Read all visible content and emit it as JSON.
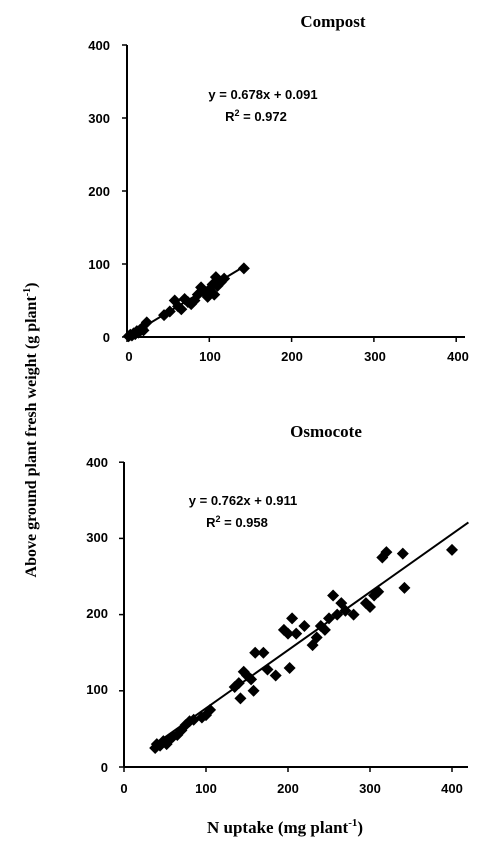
{
  "figure": {
    "ylabel": "Above ground plant fresh weight (g plant",
    "ylabel_sup": "-1",
    "ylabel_close": ")",
    "xlabel": "N uptake (mg plant",
    "xlabel_sup": "-1",
    "xlabel_close": ")"
  },
  "chart_data": [
    {
      "type": "scatter",
      "title": "Compost",
      "xlim": [
        0,
        400
      ],
      "ylim": [
        0,
        400
      ],
      "xticks": [
        "0",
        "100",
        "200",
        "300",
        "400"
      ],
      "yticks": [
        "0",
        "100",
        "200",
        "300",
        "400"
      ],
      "equation": "y = 0.678x + 0.091",
      "r2_prefix": "R",
      "r2_sup": "2",
      "r2_value": " = 0.972",
      "fit": {
        "slope": 0.678,
        "intercept": 0.091,
        "x_range": [
          0,
          142
        ]
      },
      "points": [
        [
          2,
          1
        ],
        [
          4,
          3
        ],
        [
          6,
          2
        ],
        [
          8,
          5
        ],
        [
          10,
          4
        ],
        [
          12,
          8
        ],
        [
          14,
          6
        ],
        [
          16,
          10
        ],
        [
          18,
          12
        ],
        [
          20,
          9
        ],
        [
          24,
          20
        ],
        [
          45,
          30
        ],
        [
          52,
          35
        ],
        [
          58,
          50
        ],
        [
          62,
          42
        ],
        [
          66,
          38
        ],
        [
          70,
          52
        ],
        [
          74,
          48
        ],
        [
          78,
          45
        ],
        [
          82,
          50
        ],
        [
          86,
          58
        ],
        [
          90,
          68
        ],
        [
          94,
          62
        ],
        [
          98,
          55
        ],
        [
          100,
          65
        ],
        [
          104,
          72
        ],
        [
          106,
          58
        ],
        [
          108,
          82
        ],
        [
          110,
          70
        ],
        [
          114,
          75
        ],
        [
          118,
          80
        ],
        [
          142,
          94
        ]
      ]
    },
    {
      "type": "scatter",
      "title": "Osmocote",
      "xlim": [
        0,
        400
      ],
      "ylim": [
        0,
        400
      ],
      "xticks": [
        "0",
        "100",
        "200",
        "300",
        "400"
      ],
      "yticks": [
        "0",
        "100",
        "200",
        "300",
        "400"
      ],
      "equation": "y = 0.762x + 0.911",
      "r2_prefix": "R",
      "r2_sup": "2",
      "r2_value": " = 0.958",
      "fit": {
        "slope": 0.762,
        "intercept": 0.911,
        "x_range": [
          38,
          420
        ]
      },
      "points": [
        [
          38,
          25
        ],
        [
          40,
          30
        ],
        [
          44,
          28
        ],
        [
          48,
          34
        ],
        [
          52,
          30
        ],
        [
          56,
          36
        ],
        [
          60,
          40
        ],
        [
          65,
          42
        ],
        [
          70,
          48
        ],
        [
          75,
          55
        ],
        [
          80,
          60
        ],
        [
          85,
          62
        ],
        [
          95,
          65
        ],
        [
          100,
          68
        ],
        [
          105,
          75
        ],
        [
          135,
          105
        ],
        [
          140,
          110
        ],
        [
          142,
          90
        ],
        [
          146,
          125
        ],
        [
          150,
          120
        ],
        [
          155,
          115
        ],
        [
          158,
          100
        ],
        [
          160,
          150
        ],
        [
          170,
          150
        ],
        [
          175,
          128
        ],
        [
          185,
          120
        ],
        [
          195,
          180
        ],
        [
          200,
          175
        ],
        [
          202,
          130
        ],
        [
          205,
          195
        ],
        [
          210,
          175
        ],
        [
          220,
          185
        ],
        [
          230,
          160
        ],
        [
          235,
          170
        ],
        [
          240,
          185
        ],
        [
          245,
          180
        ],
        [
          250,
          195
        ],
        [
          255,
          225
        ],
        [
          260,
          200
        ],
        [
          265,
          215
        ],
        [
          270,
          205
        ],
        [
          280,
          200
        ],
        [
          295,
          215
        ],
        [
          300,
          210
        ],
        [
          305,
          225
        ],
        [
          310,
          230
        ],
        [
          315,
          275
        ],
        [
          320,
          282
        ],
        [
          340,
          280
        ],
        [
          342,
          235
        ],
        [
          400,
          285
        ]
      ]
    }
  ]
}
